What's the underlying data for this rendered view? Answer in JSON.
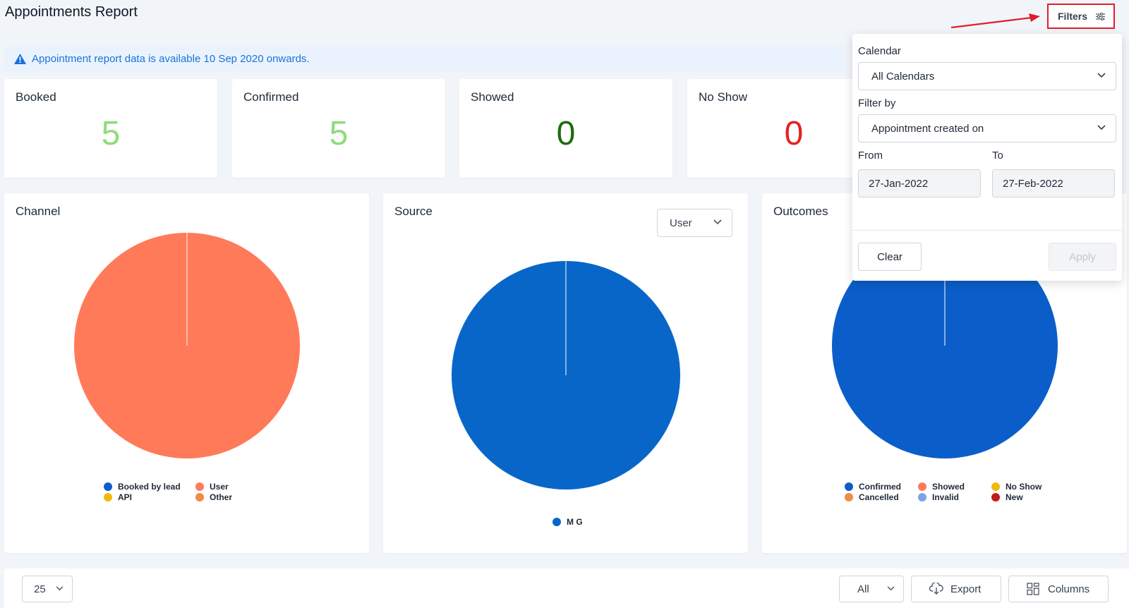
{
  "page_title": "Appointments Report",
  "banner": {
    "icon": "warning-icon",
    "text": "Appointment report data is available 10 Sep 2020 onwards."
  },
  "stats": [
    {
      "label": "Booked",
      "value": "5",
      "color": "#8fdc7e"
    },
    {
      "label": "Confirmed",
      "value": "5",
      "color": "#8fdc7e"
    },
    {
      "label": "Showed",
      "value": "0",
      "color": "#1f6b12"
    },
    {
      "label": "No Show",
      "value": "0",
      "color": "#e02424"
    }
  ],
  "charts": {
    "channel": {
      "title": "Channel",
      "legend": [
        {
          "label": "Booked by lead",
          "color": "#0b5ec9"
        },
        {
          "label": "User",
          "color": "#ff7a59"
        },
        {
          "label": "API",
          "color": "#f2b90d"
        },
        {
          "label": "Other",
          "color": "#f08c45"
        }
      ]
    },
    "source": {
      "title": "Source",
      "select_value": "User",
      "legend": [
        {
          "label": "M G",
          "color": "#0866c9"
        }
      ]
    },
    "outcomes": {
      "title": "Outcomes",
      "legend": [
        {
          "label": "Confirmed",
          "color": "#0b5ec9"
        },
        {
          "label": "Showed",
          "color": "#ff7a59"
        },
        {
          "label": "No Show",
          "color": "#f2b90d"
        },
        {
          "label": "Cancelled",
          "color": "#f08c45"
        },
        {
          "label": "Invalid",
          "color": "#7aa4e8"
        },
        {
          "label": "New",
          "color": "#c21b1b"
        }
      ]
    }
  },
  "chart_data": [
    {
      "type": "pie",
      "title": "Channel",
      "labels": [
        "Booked by lead",
        "User",
        "API",
        "Other"
      ],
      "values": [
        0,
        5,
        0,
        0
      ]
    },
    {
      "type": "pie",
      "title": "Source",
      "labels": [
        "M G"
      ],
      "values": [
        5
      ]
    },
    {
      "type": "pie",
      "title": "Outcomes",
      "labels": [
        "Confirmed",
        "Showed",
        "No Show",
        "Cancelled",
        "Invalid",
        "New"
      ],
      "values": [
        5,
        0,
        0,
        0,
        0,
        0
      ]
    }
  ],
  "filters_button": {
    "label": "Filters",
    "icon": "sliders-icon"
  },
  "filter_panel": {
    "calendar_label": "Calendar",
    "calendar_value": "All Calendars",
    "filter_by_label": "Filter by",
    "filter_by_value": "Appointment created on",
    "from_label": "From",
    "from_value": "27-Jan-2022",
    "to_label": "To",
    "to_value": "27-Feb-2022",
    "clear_label": "Clear",
    "apply_label": "Apply"
  },
  "bottom_bar": {
    "page_size": "25",
    "status_filter": "All",
    "export_label": "Export",
    "columns_label": "Columns"
  }
}
